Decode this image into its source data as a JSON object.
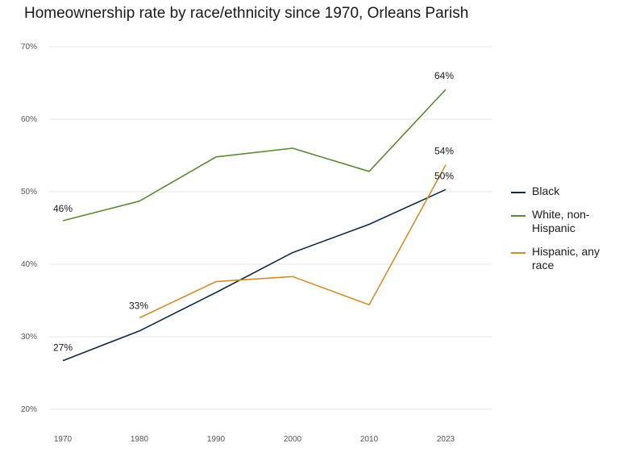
{
  "chart_data": {
    "type": "line",
    "title": "Homeownership rate by race/ethnicity since 1970, Orleans Parish",
    "x": [
      "1970",
      "1980",
      "1990",
      "2000",
      "2010",
      "2023"
    ],
    "y_ticks": [
      "20%",
      "30%",
      "40%",
      "50%",
      "60%",
      "70%"
    ],
    "ylim": [
      20,
      70
    ],
    "grid": "horizontal",
    "legend_position": "right",
    "series": [
      {
        "name": "Black",
        "color": "#0f2a44",
        "values": [
          26.7,
          30.8,
          36.1,
          41.6,
          45.5,
          50.3
        ]
      },
      {
        "name": "White, non-Hispanic",
        "color": "#5a8a35",
        "values": [
          46.0,
          48.7,
          54.8,
          56.0,
          52.8,
          64.1
        ]
      },
      {
        "name": "Hispanic, any race",
        "color": "#d28c2c",
        "values": [
          null,
          32.6,
          37.6,
          38.3,
          34.4,
          53.7
        ]
      }
    ],
    "annotations": [
      {
        "series": 0,
        "x": "1970",
        "text": "27%"
      },
      {
        "series": 1,
        "x": "1970",
        "text": "46%"
      },
      {
        "series": 2,
        "x": "1980",
        "text": "33%"
      },
      {
        "series": 1,
        "x": "2023",
        "text": "64%"
      },
      {
        "series": 2,
        "x": "2023",
        "text": "54%"
      },
      {
        "series": 0,
        "x": "2023",
        "text": "50%"
      }
    ]
  },
  "legend": {
    "items": [
      {
        "label": "Black",
        "color": "#0f2a44"
      },
      {
        "label": "White, non-Hispanic",
        "color": "#5a8a35"
      },
      {
        "label": "Hispanic, any race",
        "color": "#d28c2c"
      }
    ]
  }
}
